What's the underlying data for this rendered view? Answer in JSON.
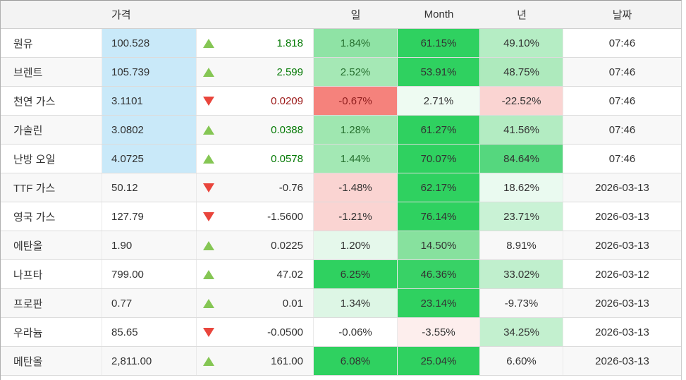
{
  "header": {
    "name": "",
    "price": "가격",
    "change": "",
    "day": "일",
    "month": "Month",
    "year": "년",
    "date": "날짜"
  },
  "palette": {
    "arrow_up": "#85c654",
    "arrow_down": "#e9453c",
    "price_highlight_bg": "#c9e9f9",
    "strong_green": "#2fd160",
    "text_up": "#067a06",
    "text_down": "#9b1717",
    "header_bg": "#f3f3f3",
    "alt_row_bg": "#f8f8f8"
  },
  "rows": [
    {
      "name": "원유",
      "price": "100.528",
      "price_highlight": true,
      "direction": "up",
      "change": "1.818",
      "change_color": "#067a06",
      "day": {
        "text": "1.84%",
        "bg": "#8fe3a5",
        "fg": "#26702f"
      },
      "month": {
        "text": "61.15%",
        "bg": "#2fd160",
        "fg": "#333333"
      },
      "year": {
        "text": "49.10%",
        "bg": "#b5edc4",
        "fg": "#333333"
      },
      "date": "07:46"
    },
    {
      "name": "브렌트",
      "price": "105.739",
      "price_highlight": true,
      "direction": "up",
      "change": "2.599",
      "change_color": "#067a06",
      "day": {
        "text": "2.52%",
        "bg": "#a5e8b5",
        "fg": "#26702f"
      },
      "month": {
        "text": "53.91%",
        "bg": "#2fd160",
        "fg": "#333333"
      },
      "year": {
        "text": "48.75%",
        "bg": "#aeeabd",
        "fg": "#333333"
      },
      "date": "07:46"
    },
    {
      "name": "천연 가스",
      "price": "3.1101",
      "price_highlight": true,
      "direction": "down",
      "change": "0.0209",
      "change_color": "#9b1717",
      "day": {
        "text": "-0.67%",
        "bg": "#f5827c",
        "fg": "#8f1d1d"
      },
      "month": {
        "text": "2.71%",
        "bg": "#eefbf2",
        "fg": "#333333"
      },
      "year": {
        "text": "-22.52%",
        "bg": "#fad4d2",
        "fg": "#333333"
      },
      "date": "07:46"
    },
    {
      "name": "가솔린",
      "price": "3.0802",
      "price_highlight": true,
      "direction": "up",
      "change": "0.0388",
      "change_color": "#067a06",
      "day": {
        "text": "1.28%",
        "bg": "#9fe7b0",
        "fg": "#26702f"
      },
      "month": {
        "text": "61.27%",
        "bg": "#2fd160",
        "fg": "#333333"
      },
      "year": {
        "text": "41.56%",
        "bg": "#b3ecc2",
        "fg": "#333333"
      },
      "date": "07:46"
    },
    {
      "name": "난방 오일",
      "price": "4.0725",
      "price_highlight": true,
      "direction": "up",
      "change": "0.0578",
      "change_color": "#067a06",
      "day": {
        "text": "1.44%",
        "bg": "#a3e8b4",
        "fg": "#26702f"
      },
      "month": {
        "text": "70.07%",
        "bg": "#2fd160",
        "fg": "#333333"
      },
      "year": {
        "text": "84.64%",
        "bg": "#55d77e",
        "fg": "#333333"
      },
      "date": "07:46"
    },
    {
      "name": "TTF 가스",
      "price": "50.12",
      "price_highlight": false,
      "direction": "down",
      "change": "-0.76",
      "change_color": "#333333",
      "day": {
        "text": "-1.48%",
        "bg": "#fad4d2",
        "fg": "#333333"
      },
      "month": {
        "text": "62.17%",
        "bg": "#2fd160",
        "fg": "#333333"
      },
      "year": {
        "text": "18.62%",
        "bg": "#eafaf0",
        "fg": "#333333"
      },
      "date": "2026-03-13"
    },
    {
      "name": "영국 가스",
      "price": "127.79",
      "price_highlight": false,
      "direction": "down",
      "change": "-1.5600",
      "change_color": "#333333",
      "day": {
        "text": "-1.21%",
        "bg": "#fad4d2",
        "fg": "#333333"
      },
      "month": {
        "text": "76.14%",
        "bg": "#2fd160",
        "fg": "#333333"
      },
      "year": {
        "text": "23.71%",
        "bg": "#c9f2d5",
        "fg": "#333333"
      },
      "date": "2026-03-13"
    },
    {
      "name": "에탄올",
      "price": "1.90",
      "price_highlight": false,
      "direction": "up",
      "change": "0.0225",
      "change_color": "#333333",
      "day": {
        "text": "1.20%",
        "bg": "#e5f8eb",
        "fg": "#333333"
      },
      "month": {
        "text": "14.50%",
        "bg": "#87e19e",
        "fg": "#333333"
      },
      "year": {
        "text": "8.91%",
        "bg": "",
        "fg": "#333333"
      },
      "date": "2026-03-13"
    },
    {
      "name": "나프타",
      "price": "799.00",
      "price_highlight": false,
      "direction": "up",
      "change": "47.02",
      "change_color": "#333333",
      "day": {
        "text": "6.25%",
        "bg": "#2fd160",
        "fg": "#333333"
      },
      "month": {
        "text": "46.36%",
        "bg": "#38d266",
        "fg": "#333333"
      },
      "year": {
        "text": "33.02%",
        "bg": "#c0efcd",
        "fg": "#333333"
      },
      "date": "2026-03-12"
    },
    {
      "name": "프로판",
      "price": "0.77",
      "price_highlight": false,
      "direction": "up",
      "change": "0.01",
      "change_color": "#333333",
      "day": {
        "text": "1.34%",
        "bg": "#ddf6e5",
        "fg": "#333333"
      },
      "month": {
        "text": "23.14%",
        "bg": "#2fd160",
        "fg": "#333333"
      },
      "year": {
        "text": "-9.73%",
        "bg": "",
        "fg": "#333333"
      },
      "date": "2026-03-13"
    },
    {
      "name": "우라늄",
      "price": "85.65",
      "price_highlight": false,
      "direction": "down",
      "change": "-0.0500",
      "change_color": "#333333",
      "day": {
        "text": "-0.06%",
        "bg": "",
        "fg": "#333333"
      },
      "month": {
        "text": "-3.55%",
        "bg": "#fdeeed",
        "fg": "#333333"
      },
      "year": {
        "text": "34.25%",
        "bg": "#c3f0cf",
        "fg": "#333333"
      },
      "date": "2026-03-13"
    },
    {
      "name": "메탄올",
      "price": "2,811.00",
      "price_highlight": false,
      "direction": "up",
      "change": "161.00",
      "change_color": "#333333",
      "day": {
        "text": "6.08%",
        "bg": "#2fd160",
        "fg": "#333333"
      },
      "month": {
        "text": "25.04%",
        "bg": "#2fd160",
        "fg": "#333333"
      },
      "year": {
        "text": "6.60%",
        "bg": "",
        "fg": "#333333"
      },
      "date": "2026-03-13"
    }
  ]
}
